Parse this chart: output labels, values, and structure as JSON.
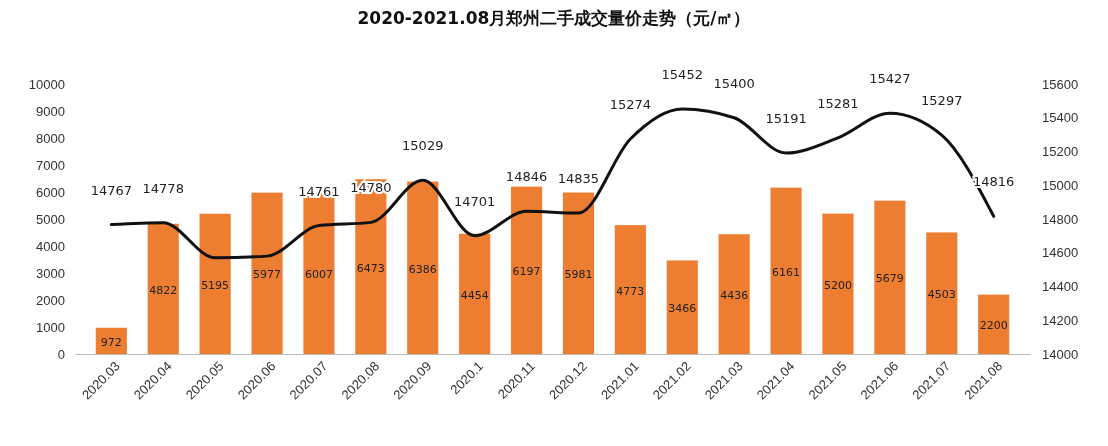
{
  "chart_data": {
    "type": "bar",
    "title": "2020-2021.08月郑州二手成交量价走势（元/㎡）",
    "categories": [
      "2020.03",
      "2020.04",
      "2020.05",
      "2020.06",
      "2020.07",
      "2020.08",
      "2020.09",
      "2020.1",
      "2020.11",
      "2020.12",
      "2021.01",
      "2021.02",
      "2021.03",
      "2021.04",
      "2021.05",
      "2021.06",
      "2021.07",
      "2021.08"
    ],
    "series": [
      {
        "color": "#ed7d31",
        "values": [
          972,
          4822,
          5195,
          5977,
          6007,
          6473,
          6386,
          4454,
          6197,
          5981,
          4773,
          3466,
          4436,
          6161,
          5200,
          5679,
          4503,
          2200
        ]
      },
      {
        "type": "line",
        "axis": "y2",
        "color": "#111111",
        "values": [
          14767,
          14778,
          14570,
          14580,
          14761,
          14780,
          15029,
          14701,
          14846,
          14835,
          15274,
          15452,
          15400,
          15191,
          15281,
          15427,
          15297,
          14816
        ],
        "value_labels": [
          "14767",
          "14778",
          null,
          null,
          "14761",
          "14780",
          "15029",
          "14701",
          "14846",
          "14835",
          "15274",
          "15452",
          "15400",
          "15191",
          "15281",
          "15427",
          "15297",
          "14816"
        ]
      }
    ],
    "data_labels": true,
    "ylim": [
      0,
      10000
    ],
    "yticks": [
      0,
      1000,
      2000,
      3000,
      4000,
      5000,
      6000,
      7000,
      8000,
      9000,
      10000
    ],
    "y2lim": [
      14000,
      15600
    ],
    "y2ticks": [
      14000,
      14200,
      14400,
      14600,
      14800,
      15000,
      15200,
      15400,
      15600
    ],
    "grid": false,
    "marker": "none",
    "line_style": "solid"
  }
}
